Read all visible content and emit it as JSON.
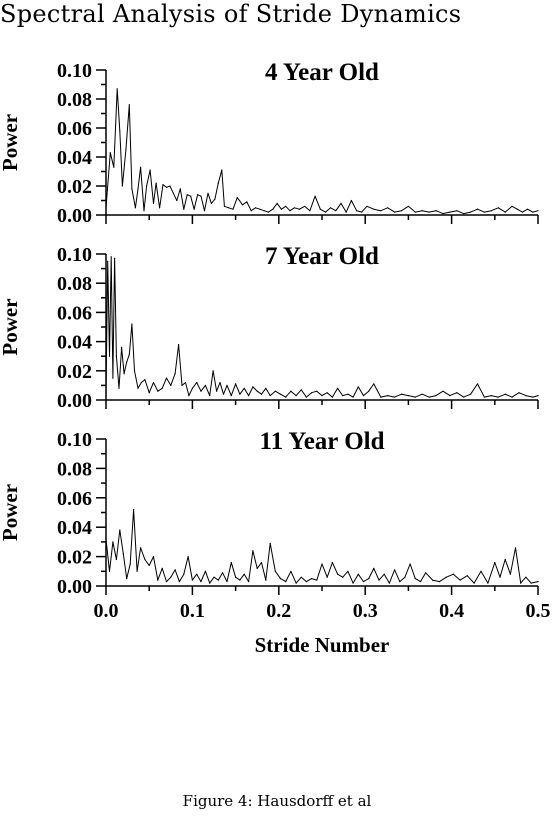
{
  "header": {
    "title": "Spectral Analysis of Stride Dynamics"
  },
  "caption": "Figure 4: Hausdorff et al",
  "chart_data": {
    "type": "line",
    "xlabel": "Stride Number",
    "xlim": [
      0.0,
      0.5
    ],
    "xticks": [
      "0.0",
      "0.1",
      "0.2",
      "0.3",
      "0.4",
      "0.5"
    ],
    "line_color": "#000000",
    "panels": [
      {
        "title": "4 Year Old",
        "ylabel": "Power",
        "ylim": [
          0.0,
          0.1
        ],
        "yticks": [
          "0.00",
          "0.02",
          "0.04",
          "0.06",
          "0.08",
          "0.10"
        ],
        "series": [
          {
            "x": [
              0.0,
              0.005,
              0.009,
              0.013,
              0.016,
              0.019,
              0.023,
              0.027,
              0.03,
              0.034,
              0.037,
              0.04,
              0.044,
              0.047,
              0.051,
              0.055,
              0.058,
              0.062,
              0.066,
              0.07,
              0.074,
              0.078,
              0.082,
              0.086,
              0.09,
              0.094,
              0.098,
              0.102,
              0.106,
              0.11,
              0.114,
              0.118,
              0.122,
              0.126,
              0.13,
              0.134,
              0.137,
              0.142,
              0.147,
              0.152,
              0.158,
              0.163,
              0.168,
              0.173,
              0.178,
              0.183,
              0.188,
              0.193,
              0.198,
              0.203,
              0.208,
              0.213,
              0.218,
              0.224,
              0.23,
              0.236,
              0.242,
              0.248,
              0.254,
              0.26,
              0.266,
              0.272,
              0.278,
              0.284,
              0.29,
              0.296,
              0.302,
              0.31,
              0.318,
              0.326,
              0.334,
              0.342,
              0.35,
              0.358,
              0.366,
              0.374,
              0.382,
              0.39,
              0.398,
              0.406,
              0.414,
              0.422,
              0.43,
              0.438,
              0.446,
              0.454,
              0.462,
              0.47,
              0.476,
              0.482,
              0.488,
              0.494,
              0.5
            ],
            "y": [
              0.005,
              0.043,
              0.033,
              0.087,
              0.058,
              0.02,
              0.045,
              0.076,
              0.018,
              0.005,
              0.018,
              0.033,
              0.003,
              0.02,
              0.031,
              0.008,
              0.022,
              0.005,
              0.021,
              0.019,
              0.02,
              0.015,
              0.01,
              0.018,
              0.004,
              0.014,
              0.013,
              0.004,
              0.014,
              0.013,
              0.003,
              0.015,
              0.008,
              0.011,
              0.022,
              0.031,
              0.006,
              0.005,
              0.004,
              0.012,
              0.007,
              0.009,
              0.003,
              0.005,
              0.004,
              0.003,
              0.002,
              0.004,
              0.008,
              0.004,
              0.006,
              0.003,
              0.005,
              0.004,
              0.006,
              0.003,
              0.013,
              0.004,
              0.002,
              0.005,
              0.003,
              0.008,
              0.002,
              0.01,
              0.003,
              0.002,
              0.006,
              0.004,
              0.003,
              0.005,
              0.002,
              0.003,
              0.006,
              0.002,
              0.003,
              0.002,
              0.003,
              0.001,
              0.002,
              0.003,
              0.001,
              0.002,
              0.004,
              0.002,
              0.003,
              0.005,
              0.002,
              0.006,
              0.004,
              0.002,
              0.004,
              0.002,
              0.003
            ]
          }
        ]
      },
      {
        "title": "7 Year Old",
        "ylabel": "Power",
        "ylim": [
          0.0,
          0.1
        ],
        "yticks": [
          "0.00",
          "0.02",
          "0.04",
          "0.06",
          "0.08",
          "0.10"
        ],
        "series": [
          {
            "x": [
              0.0,
              0.002,
              0.004,
              0.006,
              0.008,
              0.01,
              0.012,
              0.015,
              0.018,
              0.021,
              0.024,
              0.027,
              0.03,
              0.033,
              0.037,
              0.041,
              0.045,
              0.05,
              0.055,
              0.06,
              0.065,
              0.07,
              0.075,
              0.08,
              0.084,
              0.088,
              0.092,
              0.096,
              0.1,
              0.105,
              0.11,
              0.115,
              0.12,
              0.124,
              0.128,
              0.132,
              0.136,
              0.14,
              0.145,
              0.15,
              0.155,
              0.16,
              0.165,
              0.17,
              0.175,
              0.18,
              0.185,
              0.19,
              0.196,
              0.202,
              0.208,
              0.214,
              0.22,
              0.226,
              0.232,
              0.238,
              0.244,
              0.25,
              0.256,
              0.262,
              0.268,
              0.274,
              0.28,
              0.286,
              0.292,
              0.298,
              0.304,
              0.31,
              0.318,
              0.326,
              0.334,
              0.342,
              0.35,
              0.358,
              0.366,
              0.374,
              0.382,
              0.39,
              0.398,
              0.406,
              0.414,
              0.422,
              0.43,
              0.438,
              0.446,
              0.454,
              0.462,
              0.47,
              0.478,
              0.486,
              0.494,
              0.5
            ],
            "y": [
              0.003,
              0.095,
              0.03,
              0.098,
              0.015,
              0.097,
              0.03,
              0.008,
              0.036,
              0.018,
              0.026,
              0.031,
              0.052,
              0.02,
              0.008,
              0.012,
              0.014,
              0.005,
              0.012,
              0.006,
              0.008,
              0.015,
              0.01,
              0.018,
              0.038,
              0.01,
              0.012,
              0.003,
              0.008,
              0.012,
              0.006,
              0.01,
              0.003,
              0.02,
              0.006,
              0.012,
              0.004,
              0.01,
              0.003,
              0.011,
              0.004,
              0.008,
              0.003,
              0.009,
              0.006,
              0.004,
              0.008,
              0.003,
              0.006,
              0.004,
              0.002,
              0.006,
              0.003,
              0.007,
              0.002,
              0.005,
              0.006,
              0.003,
              0.005,
              0.002,
              0.008,
              0.003,
              0.004,
              0.002,
              0.009,
              0.003,
              0.006,
              0.011,
              0.002,
              0.003,
              0.002,
              0.004,
              0.003,
              0.002,
              0.004,
              0.002,
              0.003,
              0.006,
              0.003,
              0.005,
              0.002,
              0.004,
              0.011,
              0.002,
              0.003,
              0.002,
              0.004,
              0.002,
              0.005,
              0.003,
              0.002,
              0.003
            ]
          }
        ]
      },
      {
        "title": "11 Year Old",
        "ylabel": "Power",
        "ylim": [
          0.0,
          0.1
        ],
        "yticks": [
          "0.00",
          "0.02",
          "0.04",
          "0.06",
          "0.08",
          "0.10"
        ],
        "series": [
          {
            "x": [
              0.0,
              0.004,
              0.008,
              0.012,
              0.016,
              0.02,
              0.024,
              0.028,
              0.032,
              0.036,
              0.04,
              0.045,
              0.05,
              0.055,
              0.06,
              0.065,
              0.07,
              0.075,
              0.08,
              0.085,
              0.09,
              0.095,
              0.1,
              0.105,
              0.11,
              0.115,
              0.12,
              0.125,
              0.13,
              0.135,
              0.14,
              0.145,
              0.15,
              0.155,
              0.16,
              0.165,
              0.17,
              0.175,
              0.18,
              0.185,
              0.19,
              0.196,
              0.202,
              0.208,
              0.214,
              0.22,
              0.226,
              0.232,
              0.238,
              0.244,
              0.25,
              0.256,
              0.262,
              0.268,
              0.274,
              0.28,
              0.286,
              0.292,
              0.298,
              0.304,
              0.31,
              0.316,
              0.322,
              0.328,
              0.334,
              0.34,
              0.346,
              0.352,
              0.358,
              0.364,
              0.37,
              0.378,
              0.386,
              0.394,
              0.402,
              0.41,
              0.418,
              0.426,
              0.434,
              0.442,
              0.45,
              0.456,
              0.462,
              0.468,
              0.474,
              0.48,
              0.486,
              0.492,
              0.5
            ],
            "y": [
              0.032,
              0.01,
              0.03,
              0.018,
              0.038,
              0.022,
              0.005,
              0.015,
              0.052,
              0.01,
              0.026,
              0.018,
              0.014,
              0.02,
              0.004,
              0.012,
              0.003,
              0.006,
              0.011,
              0.003,
              0.008,
              0.02,
              0.004,
              0.008,
              0.003,
              0.01,
              0.002,
              0.006,
              0.004,
              0.009,
              0.003,
              0.016,
              0.006,
              0.004,
              0.008,
              0.003,
              0.024,
              0.012,
              0.016,
              0.004,
              0.029,
              0.01,
              0.005,
              0.003,
              0.01,
              0.002,
              0.006,
              0.003,
              0.005,
              0.004,
              0.015,
              0.006,
              0.016,
              0.008,
              0.006,
              0.01,
              0.002,
              0.008,
              0.003,
              0.005,
              0.012,
              0.004,
              0.008,
              0.002,
              0.011,
              0.003,
              0.006,
              0.015,
              0.005,
              0.003,
              0.009,
              0.004,
              0.003,
              0.006,
              0.008,
              0.004,
              0.007,
              0.002,
              0.01,
              0.002,
              0.016,
              0.006,
              0.018,
              0.008,
              0.026,
              0.002,
              0.006,
              0.002,
              0.003
            ]
          }
        ]
      }
    ]
  }
}
